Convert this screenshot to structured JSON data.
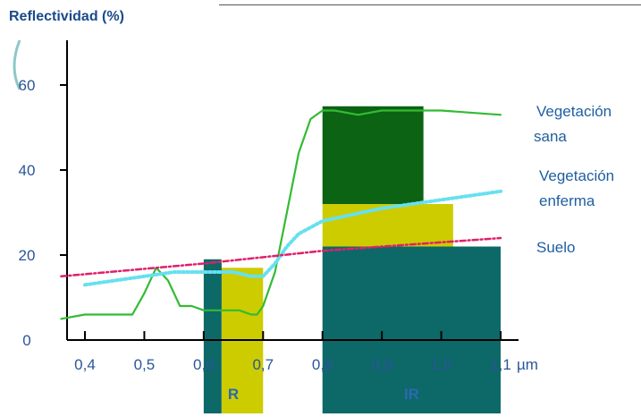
{
  "chart_data": {
    "type": "line",
    "ylabel": "Reflectividad (%)",
    "xunit": "µm",
    "xlim": [
      0.36,
      1.12
    ],
    "ylim": [
      0,
      70
    ],
    "xticks": [
      0.4,
      0.5,
      0.6,
      0.7,
      0.8,
      0.9,
      1.0,
      1.1
    ],
    "xtick_labels": [
      "0,4",
      "0,5",
      "0,6",
      "0,7",
      "0,8",
      "0,9",
      "1,0",
      "1,1"
    ],
    "yticks": [
      0,
      20,
      40,
      60
    ],
    "ytick_labels": [
      "0",
      "20",
      "40",
      "60"
    ],
    "colors": {
      "vegetacion_sana": "#33bb33",
      "vegetacion_enferma": "#66e0f0",
      "suelo": "#e0206a",
      "block_dark_green": "#0b6313",
      "block_yellow": "#cccc00",
      "block_teal": "#0d6868",
      "axis_text": "#2a5599"
    },
    "series": [
      {
        "name": "Vegetación sana",
        "label_lines": [
          "Vegetación",
          "sana"
        ],
        "color": "#33bb33",
        "style": "solid",
        "x": [
          0.36,
          0.4,
          0.44,
          0.48,
          0.5,
          0.52,
          0.54,
          0.56,
          0.58,
          0.6,
          0.62,
          0.64,
          0.66,
          0.68,
          0.69,
          0.7,
          0.72,
          0.74,
          0.76,
          0.78,
          0.8,
          0.82,
          0.86,
          0.9,
          1.0,
          1.1
        ],
        "y": [
          5,
          6,
          6,
          6,
          11,
          17,
          14,
          8,
          8,
          7,
          7,
          7,
          7,
          6,
          6,
          8,
          16,
          30,
          44,
          52,
          54,
          54,
          53,
          54,
          54,
          53
        ]
      },
      {
        "name": "Vegetación enferma",
        "label_lines": [
          "Vegetación",
          "enferma"
        ],
        "color": "#66e0f0",
        "style": "dotted",
        "x": [
          0.4,
          0.45,
          0.5,
          0.55,
          0.6,
          0.65,
          0.68,
          0.7,
          0.72,
          0.74,
          0.76,
          0.8,
          0.9,
          1.0,
          1.1
        ],
        "y": [
          13,
          14,
          15,
          16,
          16,
          16,
          15,
          15,
          18,
          22,
          25,
          28,
          31,
          33,
          35
        ]
      },
      {
        "name": "Suelo",
        "label_lines": [
          "Suelo"
        ],
        "color": "#e0206a",
        "style": "dashdot",
        "x": [
          0.36,
          0.6,
          0.8,
          1.1
        ],
        "y": [
          15,
          18,
          21,
          24
        ]
      }
    ],
    "bands": [
      {
        "label": "R",
        "x": [
          0.6,
          0.7
        ]
      },
      {
        "label": "IR",
        "x": [
          0.8,
          1.1
        ]
      }
    ],
    "blocks": [
      {
        "color": "#0b6313",
        "x": [
          0.61,
          0.63
        ],
        "y": [
          7,
          18
        ]
      },
      {
        "color": "#cccc00",
        "x": [
          0.63,
          0.7
        ],
        "y": [
          0,
          17
        ]
      },
      {
        "color": "#0d6868",
        "x": [
          0.6,
          0.63
        ],
        "y": [
          0,
          19
        ]
      },
      {
        "color": "#0b6313",
        "x": [
          0.8,
          0.97
        ],
        "y": [
          32,
          55
        ]
      },
      {
        "color": "#cccc00",
        "x": [
          0.8,
          1.02
        ],
        "y": [
          22,
          32
        ]
      },
      {
        "color": "#0d6868",
        "x": [
          0.8,
          1.1
        ],
        "y": [
          0,
          22
        ]
      }
    ],
    "grid": false
  }
}
